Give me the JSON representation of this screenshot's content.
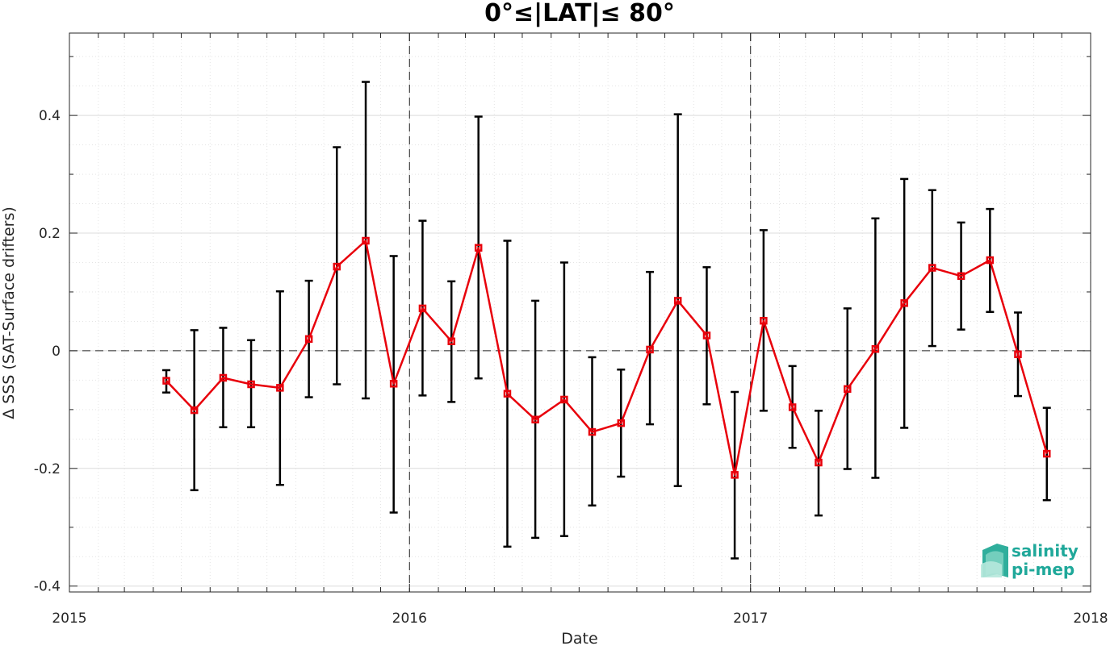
{
  "chart_data": {
    "type": "line",
    "title": "0°≤|LAT|≤ 80°",
    "xlabel": "Date",
    "ylabel": "Δ SSS (SAT-Surface drifters)",
    "xlim": [
      "2015-01-01",
      "2018-01-01"
    ],
    "ylim": [
      -0.41,
      0.54
    ],
    "x_ticks": [
      "2015",
      "2016",
      "2017",
      "2018"
    ],
    "y_ticks": [
      -0.4,
      -0.2,
      0,
      0.2,
      0.4
    ],
    "y_tick_labels": [
      "-0.4",
      "-0.2",
      "0",
      "0.2",
      "0.4"
    ],
    "grid": true,
    "reference_lines": {
      "horizontal": [
        0
      ],
      "vertical": [
        "2016-01-01",
        "2017-01-01"
      ]
    },
    "colors": {
      "series": "#e8000b",
      "error_bars": "#000000"
    },
    "series": [
      {
        "x": [
          "2015-04-15",
          "2015-05-15",
          "2015-06-15",
          "2015-07-15",
          "2015-08-15",
          "2015-09-15",
          "2015-10-15",
          "2015-11-15",
          "2015-12-15",
          "2016-01-15",
          "2016-02-15",
          "2016-03-15",
          "2016-04-15",
          "2016-05-15",
          "2016-06-15",
          "2016-07-15",
          "2016-08-15",
          "2016-09-15",
          "2016-10-15",
          "2016-11-15",
          "2016-12-15",
          "2017-01-15",
          "2017-02-15",
          "2017-03-15",
          "2017-04-15",
          "2017-05-15",
          "2017-06-15",
          "2017-07-15",
          "2017-08-15",
          "2017-09-15",
          "2017-10-15",
          "2017-11-15"
        ],
        "y": [
          -0.051,
          -0.101,
          -0.046,
          -0.057,
          -0.063,
          0.02,
          0.143,
          0.187,
          -0.056,
          0.072,
          0.016,
          0.175,
          -0.073,
          -0.117,
          -0.083,
          -0.138,
          -0.123,
          0.002,
          0.085,
          0.026,
          -0.211,
          0.051,
          -0.096,
          -0.19,
          -0.065,
          0.003,
          0.081,
          0.141,
          0.127,
          0.154,
          -0.006,
          -0.175
        ],
        "err_low": [
          -0.071,
          -0.237,
          -0.13,
          -0.13,
          -0.228,
          -0.079,
          -0.057,
          -0.081,
          -0.275,
          -0.076,
          -0.087,
          -0.047,
          -0.333,
          -0.318,
          -0.315,
          -0.263,
          -0.214,
          -0.125,
          -0.23,
          -0.091,
          -0.353,
          -0.102,
          -0.165,
          -0.28,
          -0.201,
          -0.216,
          -0.131,
          0.008,
          0.036,
          0.066,
          -0.077,
          -0.254
        ],
        "err_high": [
          -0.033,
          0.035,
          0.039,
          0.018,
          0.101,
          0.119,
          0.346,
          0.457,
          0.161,
          0.221,
          0.118,
          0.398,
          0.187,
          0.085,
          0.15,
          -0.011,
          -0.032,
          0.134,
          0.402,
          0.142,
          -0.07,
          0.205,
          -0.026,
          -0.102,
          0.072,
          0.225,
          0.292,
          0.273,
          0.218,
          0.241,
          0.065,
          -0.097
        ]
      }
    ]
  }
}
